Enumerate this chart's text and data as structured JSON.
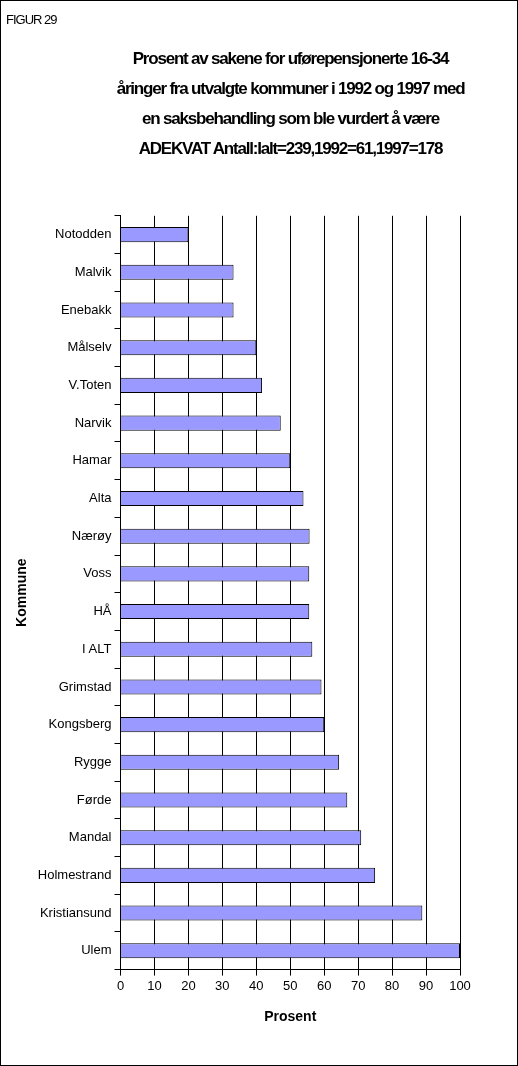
{
  "chart_data": {
    "type": "bar",
    "orientation": "horizontal",
    "title": "Prosent av sakene for uførepensjonerte 16-34 åringer  fra utvalgte kommuner i 1992 og 1997 med en saksbehandling som ble vurdert å være ADEKVAT Antall:Ialt=239,1992=61,1997=178",
    "annotations": [
      "FIGUR 29"
    ],
    "xlabel": "Prosent",
    "ylabel": "Kommune",
    "categories": [
      "Notodden",
      "Malvik",
      "Enebakk",
      "Målselv",
      "V.Toten",
      "Narvik",
      "Hamar",
      "Alta",
      "Nærøy",
      "Voss",
      "HÅ",
      "I ALT",
      "Grimstad",
      "Kongsberg",
      "Rygge",
      "Førde",
      "Mandal",
      "Holmestrand",
      "Kristiansund",
      "Ulem"
    ],
    "values": [
      20,
      33.3,
      33.3,
      40,
      41.7,
      47.2,
      50,
      53.9,
      55.7,
      55.6,
      55.6,
      56.5,
      59.2,
      60,
      64.4,
      66.8,
      70.9,
      75,
      88.9,
      100
    ],
    "color": "#9999ff",
    "xlim": [
      0,
      100
    ],
    "xticks": [
      0,
      10,
      20,
      30,
      40,
      50,
      60,
      70,
      80,
      90,
      100
    ],
    "grid": "x",
    "legend": false
  }
}
